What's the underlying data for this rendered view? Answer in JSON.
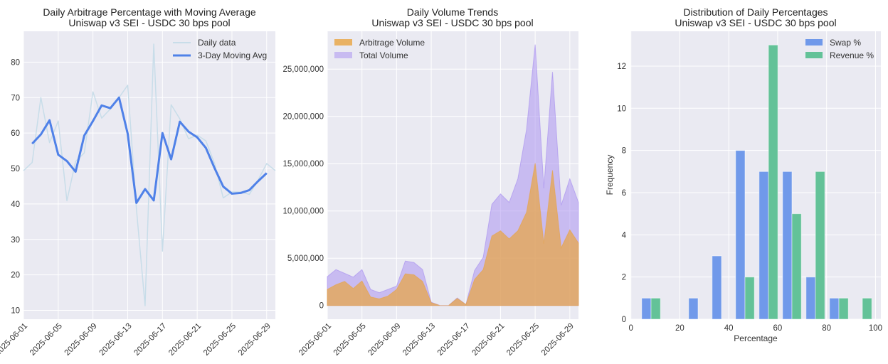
{
  "chart_data": [
    {
      "type": "line",
      "title": "Daily Arbitrage Percentage with Moving Average",
      "subtitle": "Uniswap v3 SEI - USDC 30 bps pool",
      "xlabel": "",
      "ylabel": "",
      "x_start": "2025-06-01",
      "xticks": [
        "2025-06-01",
        "2025-06-05",
        "2025-06-09",
        "2025-06-13",
        "2025-06-17",
        "2025-06-21",
        "2025-06-25",
        "2025-06-29"
      ],
      "yticks": [
        10,
        20,
        30,
        40,
        50,
        60,
        70,
        80
      ],
      "ylim": [
        7.5,
        88.7
      ],
      "grid": true,
      "legend": "top-right",
      "series": [
        {
          "name": "Daily data",
          "color": "#c8dde9",
          "start_offset": 0,
          "values": [
            49.4,
            51.7,
            70.0,
            57.3,
            63.4,
            40.9,
            52.0,
            54.4,
            71.6,
            64.2,
            66.8,
            70.0,
            73.5,
            38.7,
            11.3,
            85.1,
            26.7,
            68.0,
            64.0,
            58.4,
            59.4,
            57.8,
            51.4,
            41.7,
            43.4,
            43.4,
            42.7,
            46.7,
            51.4,
            49.4
          ]
        },
        {
          "name": "3-Day Moving Avg",
          "color": "#4f81e8",
          "start_offset": 1,
          "values": [
            57.0,
            59.6,
            63.6,
            53.9,
            52.1,
            49.1,
            59.3,
            63.4,
            67.8,
            67.0,
            70.0,
            59.8,
            40.3,
            44.2,
            41.0,
            60.0,
            52.6,
            63.2,
            60.4,
            58.8,
            55.8,
            50.1,
            44.9,
            42.9,
            43.1,
            43.9,
            46.4,
            48.7
          ]
        }
      ]
    },
    {
      "type": "area",
      "title": "Daily Volume Trends",
      "subtitle": "Uniswap v3 SEI - USDC 30 bps pool",
      "xlabel": "",
      "ylabel": "",
      "x_start": "2025-06-01",
      "xticks": [
        "2025-06-01",
        "2025-06-05",
        "2025-06-09",
        "2025-06-13",
        "2025-06-17",
        "2025-06-21",
        "2025-06-25",
        "2025-06-29"
      ],
      "yticks": [
        0,
        5000000,
        10000000,
        15000000,
        20000000,
        25000000
      ],
      "ytick_labels": [
        "0",
        "5,000,000",
        "10,000,000",
        "15,000,000",
        "20,000,000",
        "25,000,000"
      ],
      "ylim": [
        -1450000,
        29000000
      ],
      "grid": true,
      "legend": "top-left",
      "series": [
        {
          "name": "Arbitrage Volume",
          "color": "#e8a440",
          "opacity": 0.7,
          "values": [
            1700000,
            2200000,
            2550000,
            1800000,
            2600000,
            900000,
            700000,
            1000000,
            1700000,
            3350000,
            3250000,
            2550000,
            300000,
            0,
            0,
            750000,
            100000,
            2750000,
            3800000,
            7350000,
            7900000,
            7050000,
            7900000,
            9850000,
            15050000,
            6550000,
            14300000,
            6100000,
            8000000,
            6600000
          ]
        },
        {
          "name": "Total Volume",
          "color": "#a58cf0",
          "opacity": 0.5,
          "values": [
            3050000,
            3800000,
            3400000,
            3000000,
            3800000,
            1700000,
            1350000,
            1700000,
            2050000,
            4700000,
            4550000,
            3800000,
            350000,
            0,
            0,
            800000,
            100000,
            3700000,
            5100000,
            10700000,
            11800000,
            10900000,
            13400000,
            18600000,
            27600000,
            12400000,
            24700000,
            10600000,
            13400000,
            10900000
          ]
        }
      ]
    },
    {
      "type": "bar",
      "title": "Distribution of Daily Percentages",
      "subtitle": "Uniswap v3 SEI - USDC 30 bps pool",
      "xlabel": "Percentage",
      "ylabel": "Frequency",
      "bin_edges": [
        4.4,
        14.0,
        23.6,
        33.2,
        42.8,
        52.4,
        62.0,
        71.6,
        81.2,
        90.8,
        100.4
      ],
      "xticks": [
        0,
        20,
        40,
        60,
        80,
        100
      ],
      "yticks": [
        0,
        2,
        4,
        6,
        8,
        10,
        12
      ],
      "xlim": [
        -0.2,
        102.2
      ],
      "ylim": [
        0,
        13.65
      ],
      "grid": true,
      "legend": "top-right",
      "series": [
        {
          "name": "Swap %",
          "color": "#7099ea",
          "values": [
            1,
            0,
            1,
            3,
            8,
            7,
            7,
            2,
            1,
            0
          ]
        },
        {
          "name": "Revenue %",
          "color": "#63c298",
          "values": [
            1,
            0,
            0,
            0,
            2,
            13,
            5,
            7,
            1,
            1
          ]
        }
      ]
    }
  ]
}
